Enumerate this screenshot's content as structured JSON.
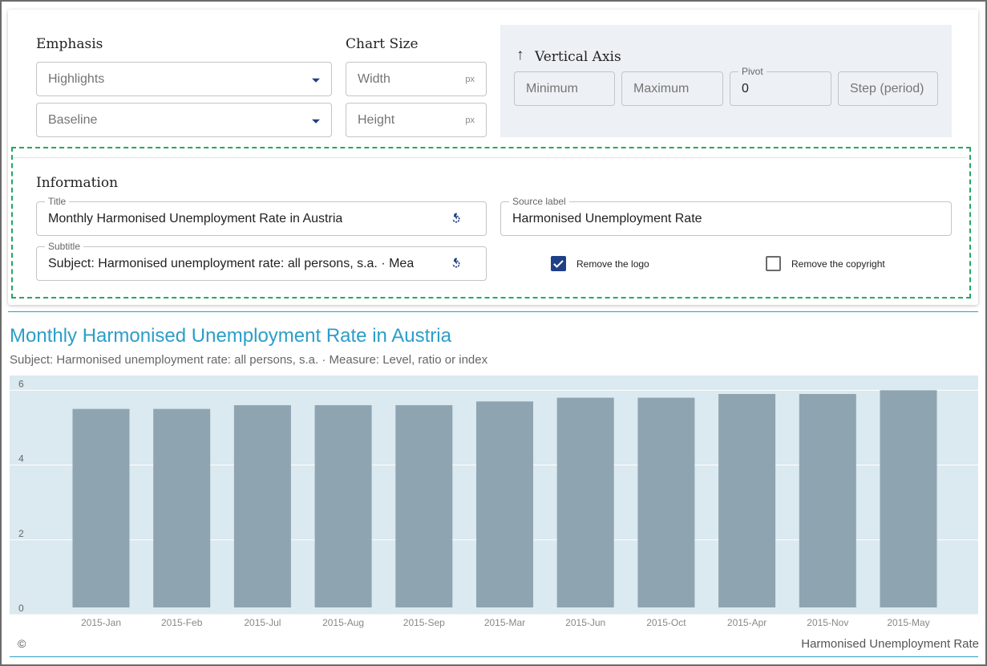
{
  "emphasis": {
    "heading": "Emphasis",
    "highlights_placeholder": "Highlights",
    "baseline_placeholder": "Baseline"
  },
  "chart_size": {
    "heading": "Chart Size",
    "width_placeholder": "Width",
    "height_placeholder": "Height",
    "unit": "px"
  },
  "vertical_axis": {
    "heading": "Vertical Axis",
    "minimum_placeholder": "Minimum",
    "maximum_placeholder": "Maximum",
    "pivot_label": "Pivot",
    "pivot_value": "0",
    "step_placeholder": "Step (period)"
  },
  "information": {
    "heading": "Information",
    "title_label": "Title",
    "title_value": "Monthly Harmonised Unemployment Rate in Austria",
    "subtitle_label": "Subtitle",
    "subtitle_value": "Subject: Harmonised unemployment rate: all persons, s.a. · Mea",
    "source_label": "Source label",
    "source_value": "Harmonised Unemployment Rate",
    "remove_logo_label": "Remove the logo",
    "remove_logo_checked": true,
    "remove_copyright_label": "Remove the copyright",
    "remove_copyright_checked": false
  },
  "chart": {
    "copyright_symbol": "©",
    "source": "Harmonised Unemployment Rate"
  },
  "colors": {
    "accent": "#2b9ec9",
    "bar": "#8fa4b1",
    "plot_bg": "#dbe9f0",
    "checkbox": "#1f3f87",
    "highlight_border": "#23a864"
  },
  "chart_data": {
    "type": "bar",
    "title": "Monthly Harmonised Unemployment Rate in Austria",
    "subtitle": "Subject: Harmonised unemployment rate: all persons, s.a. · Measure: Level, ratio or index",
    "categories": [
      "2015-Jan",
      "2015-Feb",
      "2015-Jul",
      "2015-Aug",
      "2015-Sep",
      "2015-Mar",
      "2015-Jun",
      "2015-Oct",
      "2015-Apr",
      "2015-Nov",
      "2015-May"
    ],
    "values": [
      5.5,
      5.5,
      5.6,
      5.6,
      5.6,
      5.7,
      5.8,
      5.8,
      5.9,
      5.9,
      6.0
    ],
    "yticks": [
      0,
      2,
      4,
      6
    ],
    "ylim": [
      0,
      6.2
    ],
    "grid": true,
    "legend": "none"
  }
}
